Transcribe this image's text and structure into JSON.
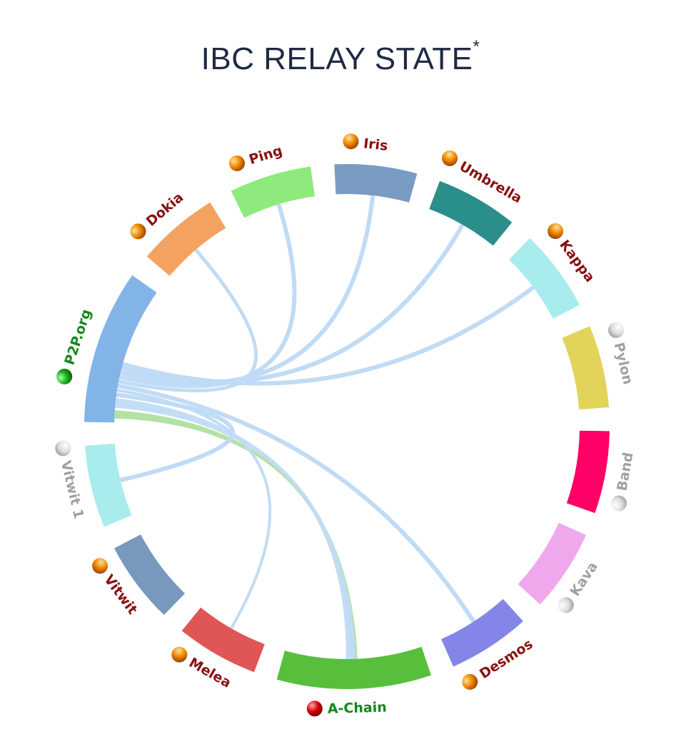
{
  "title": "IBC RELAY STATE",
  "title_mark": "*",
  "status_colors": {
    "green": "#1db51d",
    "orange": "#f08a00",
    "red": "#d80000",
    "grey": "#d8d8d8"
  },
  "label_colors": {
    "green": "#15881a",
    "orange": "#8a1010",
    "red": "#15881a",
    "grey": "#a0a0a0"
  },
  "nodes": [
    {
      "name": "P2P.org",
      "status": "green",
      "color": "#82b4e8",
      "span": 30
    },
    {
      "name": "Dokia",
      "status": "orange",
      "color": "#f4a261",
      "span": 16
    },
    {
      "name": "Ping",
      "status": "orange",
      "color": "#8eea7c",
      "span": 16
    },
    {
      "name": "Iris",
      "status": "orange",
      "color": "#7a9bc2",
      "span": 16
    },
    {
      "name": "Umbrella",
      "status": "orange",
      "color": "#2a8f8a",
      "span": 16
    },
    {
      "name": "Kappa",
      "status": "orange",
      "color": "#a8ecee",
      "span": 16
    },
    {
      "name": "Pylon",
      "status": "grey",
      "color": "#e2d35a",
      "span": 16
    },
    {
      "name": "Band",
      "status": "grey",
      "color": "#ff0066",
      "span": 16
    },
    {
      "name": "Kava",
      "status": "grey",
      "color": "#efa8ec",
      "span": 16
    },
    {
      "name": "Desmos",
      "status": "orange",
      "color": "#8386e8",
      "span": 16
    },
    {
      "name": "A-Chain",
      "status": "red",
      "color": "#57bf3c",
      "span": 30
    },
    {
      "name": "Melea",
      "status": "orange",
      "color": "#e05656",
      "span": 16
    },
    {
      "name": "Vitwit",
      "status": "orange",
      "color": "#7898be",
      "span": 16
    },
    {
      "name": "Vitwit 1",
      "status": "grey",
      "color": "#a8ecee",
      "span": 16
    }
  ],
  "links": [
    {
      "source": "P2P.org",
      "target": "A-Chain",
      "color": "#b0e0a0",
      "width": 34
    },
    {
      "source": "P2P.org",
      "target": "A-Chain",
      "color": "#c0dbf5",
      "width": 40
    },
    {
      "source": "P2P.org",
      "target": "Vitwit 1",
      "color": "#c0dbf5",
      "width": 6
    },
    {
      "source": "P2P.org",
      "target": "Melea",
      "color": "#c0dbf5",
      "width": 4
    },
    {
      "source": "P2P.org",
      "target": "Desmos",
      "color": "#c0dbf5",
      "width": 6
    },
    {
      "source": "P2P.org",
      "target": "Dokia",
      "color": "#c0dbf5",
      "width": 5
    },
    {
      "source": "P2P.org",
      "target": "Ping",
      "color": "#c0dbf5",
      "width": 6
    },
    {
      "source": "P2P.org",
      "target": "Iris",
      "color": "#c0dbf5",
      "width": 6
    },
    {
      "source": "P2P.org",
      "target": "Umbrella",
      "color": "#c0dbf5",
      "width": 6
    },
    {
      "source": "P2P.org",
      "target": "Kappa",
      "color": "#c0dbf5",
      "width": 6
    }
  ]
}
